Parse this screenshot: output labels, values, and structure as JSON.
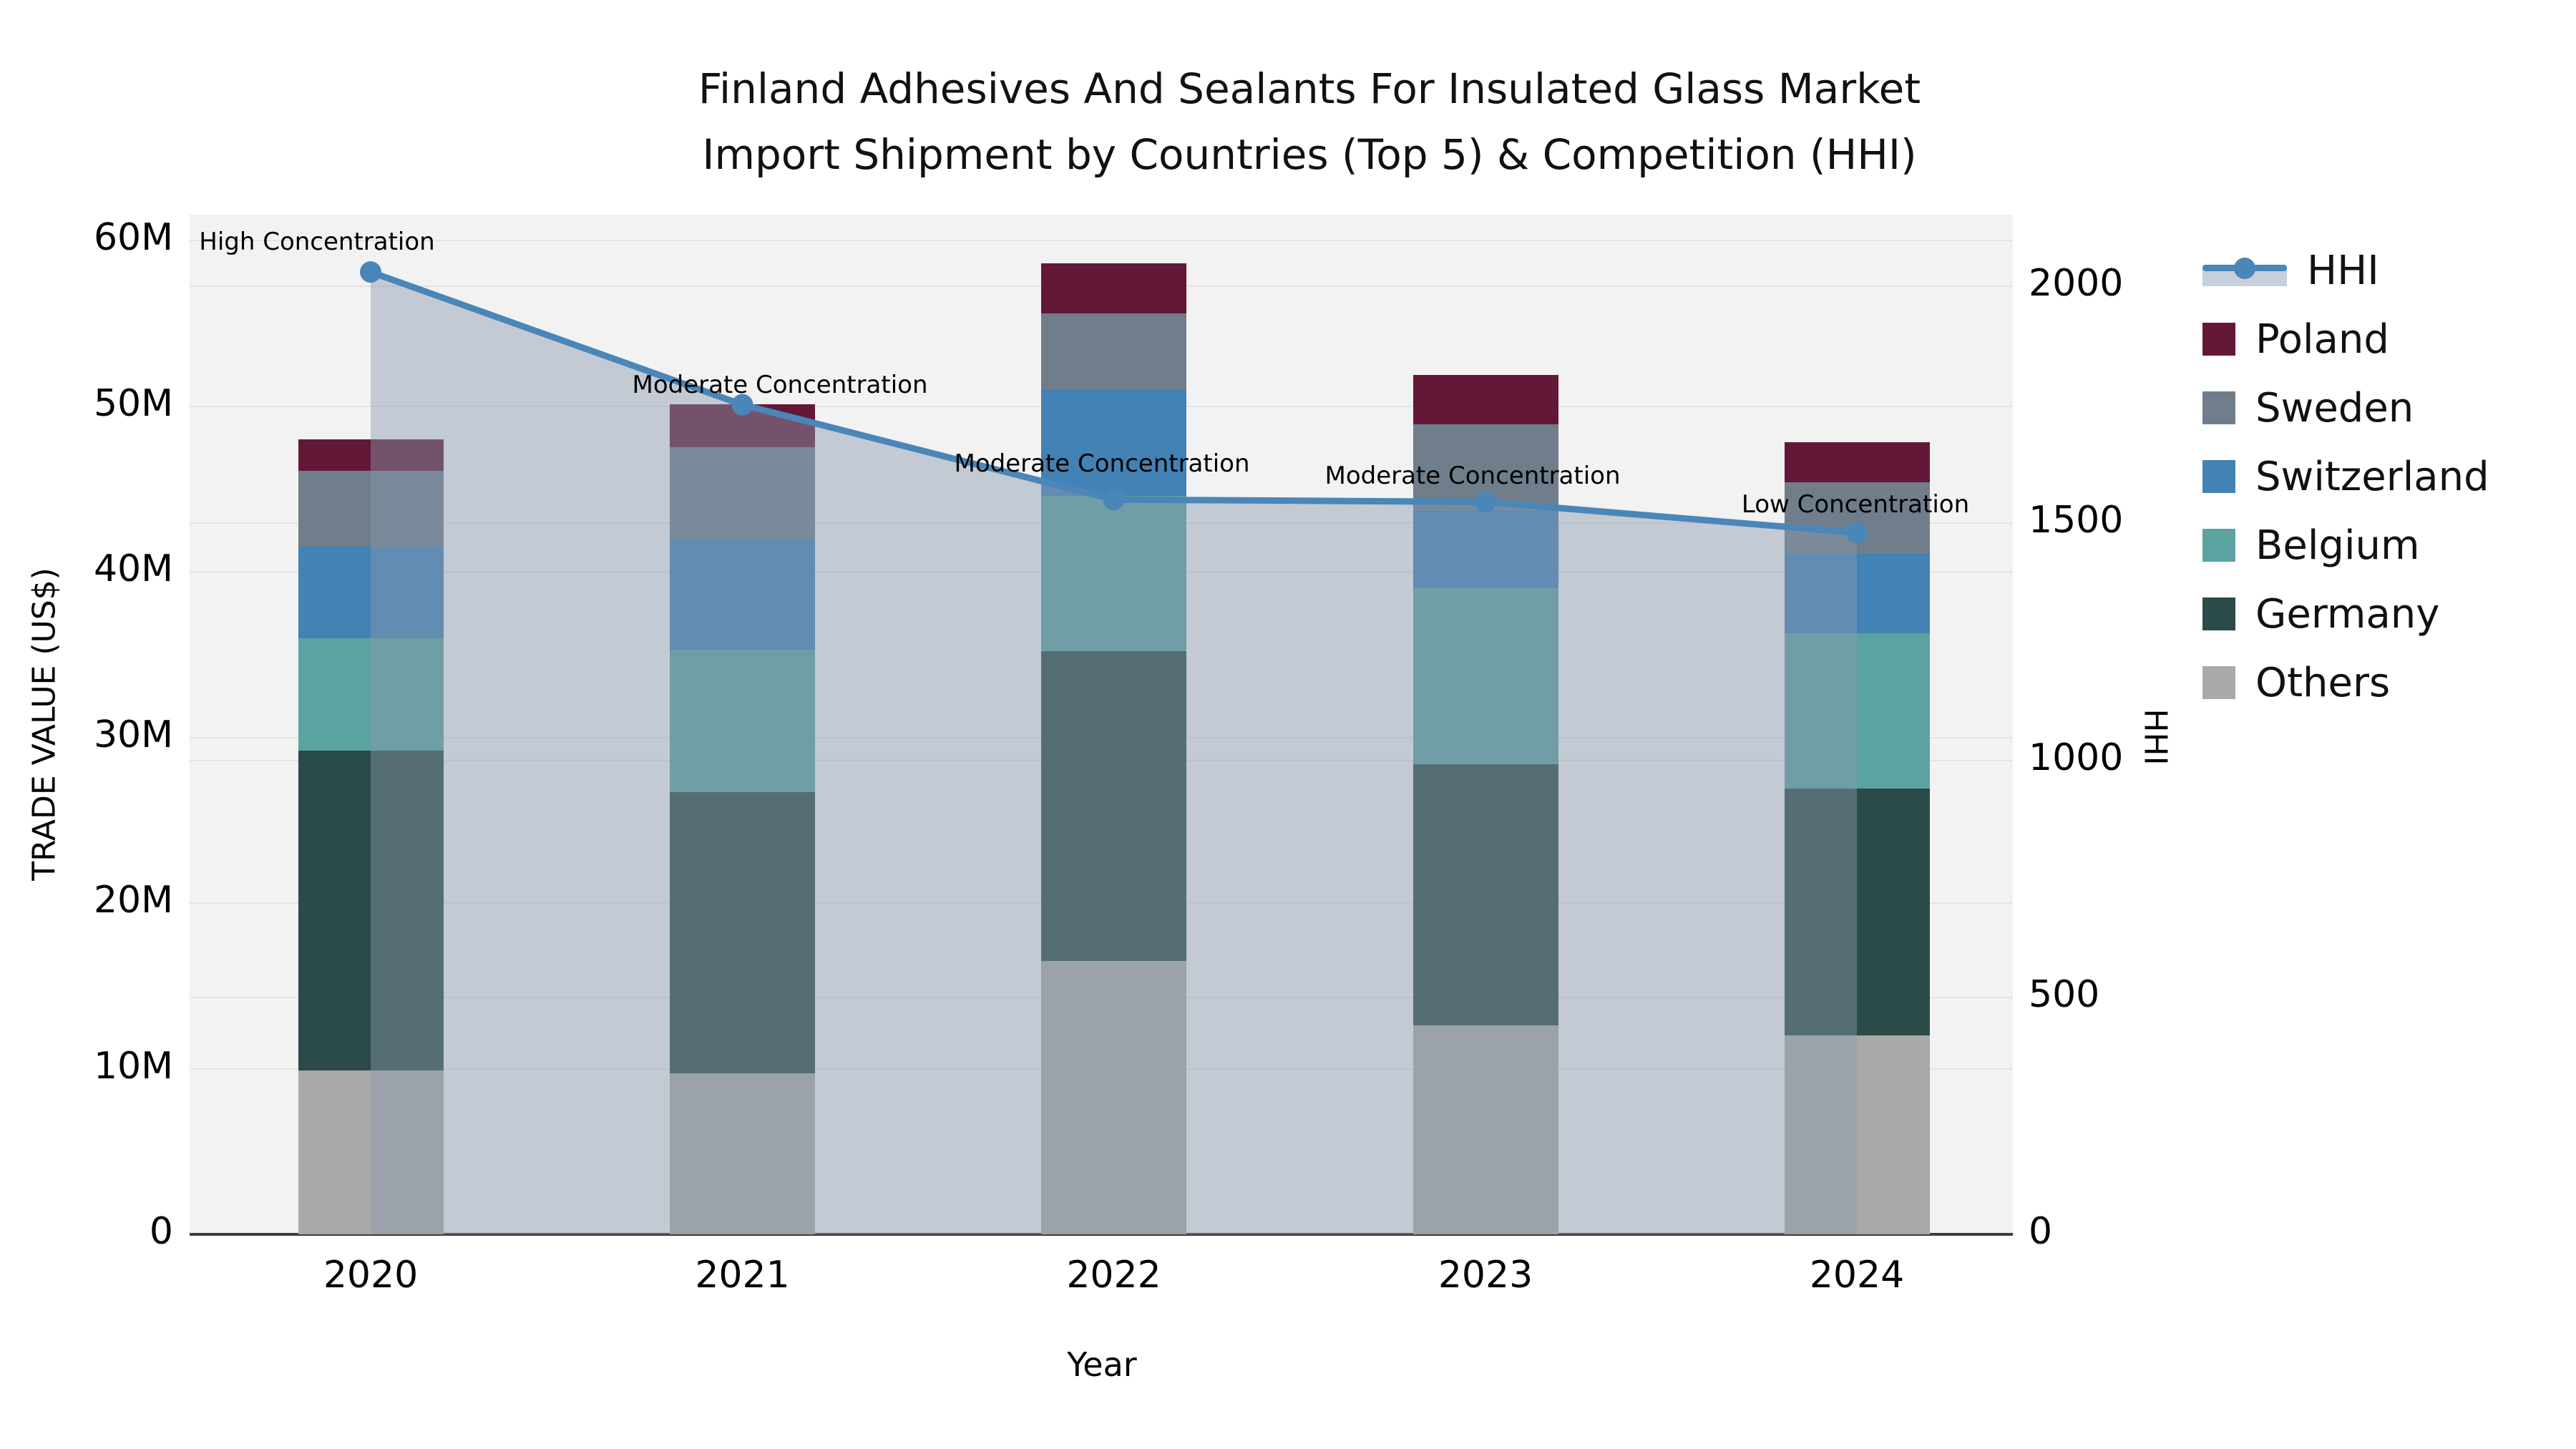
{
  "header": {
    "title_line1": "Finland Adhesives And Sealants For Insulated Glass Market",
    "title_line2": "Import Shipment by Countries (Top 5) & Competition (HHI)"
  },
  "chart_data": {
    "type": "bar",
    "subtype": "stacked-bars-with-line-overlay",
    "title": "Finland Adhesives And Sealants For Insulated Glass Market Import Shipment by Countries (Top 5) & Competition (HHI)",
    "xlabel": "Year",
    "ylabel_left": "TRADE VALUE (US$)",
    "ylabel_right": "HHI",
    "categories": [
      "2020",
      "2021",
      "2022",
      "2023",
      "2024"
    ],
    "values_unit": "million US$",
    "stack_order_bottom_to_top": [
      "Others",
      "Germany",
      "Belgium",
      "Switzerland",
      "Sweden",
      "Poland"
    ],
    "series": [
      {
        "name": "Poland",
        "color": "#641838",
        "values": [
          1.9,
          2.6,
          3.0,
          3.0,
          2.4
        ]
      },
      {
        "name": "Sweden",
        "color": "#707e8c",
        "values": [
          4.6,
          5.5,
          4.6,
          5.2,
          4.3
        ]
      },
      {
        "name": "Switzerland",
        "color": "#4282b4",
        "values": [
          5.5,
          6.7,
          6.4,
          4.7,
          4.8
        ]
      },
      {
        "name": "Belgium",
        "color": "#5ba3a1",
        "values": [
          6.8,
          8.6,
          9.4,
          10.6,
          9.4
        ]
      },
      {
        "name": "Germany",
        "color": "#2b4b48",
        "values": [
          19.3,
          17.0,
          18.7,
          15.8,
          14.9
        ]
      },
      {
        "name": "Others",
        "color": "#a9a9a7",
        "values": [
          9.9,
          9.7,
          16.5,
          12.6,
          12.0
        ]
      }
    ],
    "bar_totals": [
      48.0,
      50.1,
      58.6,
      51.9,
      47.8
    ],
    "line_series": {
      "name": "HHI",
      "color": "#4a86b8",
      "area_fill_color": "#8998ad",
      "area_fill_opacity": 0.45,
      "values": [
        2030,
        1750,
        1550,
        1545,
        1480
      ]
    },
    "annotations": [
      {
        "text": "High Concentration",
        "x": 443,
        "y": 338
      },
      {
        "text": "Moderate Concentration",
        "x": 1090,
        "y": 538
      },
      {
        "text": "Moderate Concentration",
        "x": 1540,
        "y": 648
      },
      {
        "text": "Moderate Concentration",
        "x": 2058,
        "y": 665
      },
      {
        "text": "Low Concentration",
        "x": 2593,
        "y": 705
      }
    ],
    "y_left": {
      "tick_labels": [
        "0",
        "10M",
        "20M",
        "30M",
        "40M",
        "50M",
        "60M"
      ],
      "tick_values": [
        0,
        10,
        20,
        30,
        40,
        50,
        60
      ],
      "range": [
        0,
        61.5
      ],
      "grid": true
    },
    "y_right": {
      "tick_labels": [
        "0",
        "500",
        "1000",
        "1500",
        "2000"
      ],
      "tick_values": [
        0,
        500,
        1000,
        1500,
        2000
      ],
      "range": [
        0,
        2000
      ],
      "grid": true
    },
    "legend_position": "right"
  },
  "legend": {
    "items": [
      {
        "label": "HHI",
        "kind": "line"
      },
      {
        "label": "Poland",
        "kind": "swatch",
        "color": "#641838"
      },
      {
        "label": "Sweden",
        "kind": "swatch",
        "color": "#707e8c"
      },
      {
        "label": "Switzerland",
        "kind": "swatch",
        "color": "#4282b4"
      },
      {
        "label": "Belgium",
        "kind": "swatch",
        "color": "#5ba3a1"
      },
      {
        "label": "Germany",
        "kind": "swatch",
        "color": "#2b4b48"
      },
      {
        "label": "Others",
        "kind": "swatch",
        "color": "#a9a9a7"
      }
    ]
  },
  "colors": {
    "plot_background": "#f2f2f2",
    "gridline": "#e4e4e6",
    "axis_line": "#3c3c3c",
    "text": "#000000",
    "hhi_line": "#4a86b8",
    "hhi_area": "#8998ad"
  }
}
